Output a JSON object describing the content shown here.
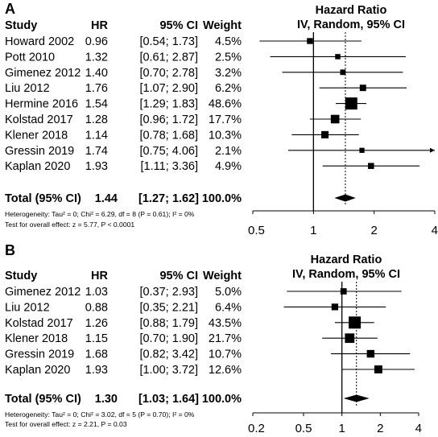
{
  "chart_data": [
    {
      "type": "forest",
      "panel_label": "A",
      "title_line1": "Hazard Ratio",
      "title_line2": "IV, Random, 95% CI",
      "columns": {
        "study": "Study",
        "hr": "HR",
        "ci": "95% CI",
        "weight": "Weight"
      },
      "studies": [
        {
          "name": "Howard 2002",
          "hr_text": "0.96",
          "ci_text": "[0.54; 1.73]",
          "weight_text": "4.5%",
          "hr": 0.96,
          "lower": 0.54,
          "upper": 1.73,
          "weight": 4.5
        },
        {
          "name": "Pott 2010",
          "hr_text": "1.32",
          "ci_text": "[0.61; 2.87]",
          "weight_text": "2.5%",
          "hr": 1.32,
          "lower": 0.61,
          "upper": 2.87,
          "weight": 2.5
        },
        {
          "name": "Gimenez 2012",
          "hr_text": "1.40",
          "ci_text": "[0.70; 2.78]",
          "weight_text": "3.2%",
          "hr": 1.4,
          "lower": 0.7,
          "upper": 2.78,
          "weight": 3.2
        },
        {
          "name": "Liu 2012",
          "hr_text": "1.76",
          "ci_text": "[1.07; 2.90]",
          "weight_text": "6.2%",
          "hr": 1.76,
          "lower": 1.07,
          "upper": 2.9,
          "weight": 6.2
        },
        {
          "name": "Hermine 2016",
          "hr_text": "1.54",
          "ci_text": "[1.29; 1.83]",
          "weight_text": "48.6%",
          "hr": 1.54,
          "lower": 1.29,
          "upper": 1.83,
          "weight": 48.6
        },
        {
          "name": "Kolstad 2017",
          "hr_text": "1.28",
          "ci_text": "[0.96; 1.72]",
          "weight_text": "17.7%",
          "hr": 1.28,
          "lower": 0.96,
          "upper": 1.72,
          "weight": 17.7
        },
        {
          "name": "Klener 2018",
          "hr_text": "1.14",
          "ci_text": "[0.78; 1.68]",
          "weight_text": "10.3%",
          "hr": 1.14,
          "lower": 0.78,
          "upper": 1.68,
          "weight": 10.3
        },
        {
          "name": "Gressin 2019",
          "hr_text": "1.74",
          "ci_text": "[0.75; 4.06]",
          "weight_text": "2.1%",
          "hr": 1.74,
          "lower": 0.75,
          "upper": 4.06,
          "weight": 2.1
        },
        {
          "name": "Kaplan 2020",
          "hr_text": "1.93",
          "ci_text": "[1.11; 3.36]",
          "weight_text": "4.9%",
          "hr": 1.93,
          "lower": 1.11,
          "upper": 3.36,
          "weight": 4.9
        }
      ],
      "total": {
        "name": "Total (95% CI)",
        "hr_text": "1.44",
        "ci_text": "[1.27; 1.62]",
        "weight_text": "100.0%",
        "hr": 1.44,
        "lower": 1.27,
        "upper": 1.62
      },
      "heterogeneity": "Heterogeneity: Tau² = 0; Chi² = 6.29, df = 8 (P = 0.61); I² = 0%",
      "overall_effect": "Test for overall effect: z = 5.77, P < 0.0001",
      "x_scale": "log",
      "xlim": [
        0.5,
        4
      ],
      "x_ticks": [
        0.5,
        1,
        2,
        4
      ],
      "x_tick_labels": [
        "0.5",
        "1",
        "2",
        "4"
      ]
    },
    {
      "type": "forest",
      "panel_label": "B",
      "title_line1": "Hazard Ratio",
      "title_line2": "IV, Random, 95% CI",
      "columns": {
        "study": "Study",
        "hr": "HR",
        "ci": "95% CI",
        "weight": "Weight"
      },
      "studies": [
        {
          "name": "Gimenez 2012",
          "hr_text": "1.03",
          "ci_text": "[0.37; 2.93]",
          "weight_text": "5.0%",
          "hr": 1.03,
          "lower": 0.37,
          "upper": 2.93,
          "weight": 5.0
        },
        {
          "name": "Liu 2012",
          "hr_text": "0.88",
          "ci_text": "[0.35; 2.21]",
          "weight_text": "6.4%",
          "hr": 0.88,
          "lower": 0.35,
          "upper": 2.21,
          "weight": 6.4
        },
        {
          "name": "Kolstad 2017",
          "hr_text": "1.26",
          "ci_text": "[0.88; 1.79]",
          "weight_text": "43.5%",
          "hr": 1.26,
          "lower": 0.88,
          "upper": 1.79,
          "weight": 43.5
        },
        {
          "name": "Klener 2018",
          "hr_text": "1.15",
          "ci_text": "[0.70; 1.90]",
          "weight_text": "21.7%",
          "hr": 1.15,
          "lower": 0.7,
          "upper": 1.9,
          "weight": 21.7
        },
        {
          "name": "Gressin 2019",
          "hr_text": "1.68",
          "ci_text": "[0.82; 3.42]",
          "weight_text": "10.7%",
          "hr": 1.68,
          "lower": 0.82,
          "upper": 3.42,
          "weight": 10.7
        },
        {
          "name": "Kaplan 2020",
          "hr_text": "1.93",
          "ci_text": "[1.00; 3.72]",
          "weight_text": "12.6%",
          "hr": 1.93,
          "lower": 1.0,
          "upper": 3.72,
          "weight": 12.6
        }
      ],
      "total": {
        "name": "Total (95% CI)",
        "hr_text": "1.30",
        "ci_text": "[1.03; 1.64]",
        "weight_text": "100.0%",
        "hr": 1.3,
        "lower": 1.03,
        "upper": 1.64
      },
      "heterogeneity": "Heterogeneity: Tau² = 0; Chi² = 3.02, df = 5 (P = 0.70); I² = 0%",
      "overall_effect": "Test for overall effect: z = 2.21, P = 0.03",
      "x_scale": "log",
      "xlim": [
        0.2,
        4
      ],
      "x_ticks": [
        0.2,
        0.5,
        1,
        2,
        4
      ],
      "x_tick_labels": [
        "0.2",
        "0.5",
        "1",
        "2",
        "4"
      ]
    }
  ]
}
